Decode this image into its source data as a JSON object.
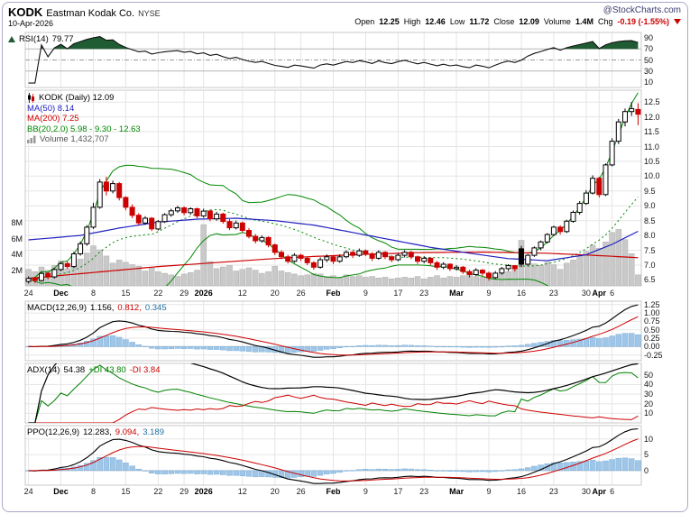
{
  "header": {
    "symbol": "KODK",
    "company": "Eastman Kodak Co.",
    "exchange": "NYSE",
    "brand": "@StockCharts.com",
    "date": "10-Apr-2026",
    "quote": [
      {
        "label": "Open",
        "value": "12.25"
      },
      {
        "label": "High",
        "value": "12.46"
      },
      {
        "label": "Low",
        "value": "11.72"
      },
      {
        "label": "Close",
        "value": "12.09"
      },
      {
        "label": "Volume",
        "value": "1.4M"
      },
      {
        "label": "Chg",
        "value": "-0.19 (-1.55%)",
        "negative": true
      }
    ]
  },
  "colors": {
    "up_candle": "#000000",
    "down_candle": "#cc0000",
    "candle_fill_up": "#ffffff",
    "ma50": "#2020c0",
    "ma200": "#cc0000",
    "bollinger": "#008800",
    "volume_bar": "#c9c9c9",
    "volume_edge": "#adadad",
    "histogram": "#9fc6e8",
    "histogram_edge": "#7aaed6",
    "rsi_line": "#111111",
    "rsi_fill": "#1f5c33",
    "macd_line": "#000000",
    "signal_line": "#cc0000",
    "hist_value": "#1f6f9f",
    "adx_line": "#000000",
    "pdi_line": "#008000",
    "ndi_line": "#cc0000",
    "grid": "#e5e5e5",
    "band_line": "#b5b5b5",
    "mid_line": "#999999",
    "zero_line": "#c8c8c8",
    "panel_border": "#c8c8c8",
    "frame_border": "#a9a9c9",
    "negative": "#cc0000"
  },
  "panels": {
    "rsi": {
      "parts": [
        {
          "t": "RSI(14)",
          "c": "#000000"
        },
        {
          "t": "79.77",
          "c": "#000000"
        }
      ],
      "ticks": [
        "90",
        "70",
        "50",
        "30",
        "10"
      ]
    },
    "price": {
      "legend": [
        {
          "text": "KODK (Daily) 12.09",
          "color": "#000000",
          "icon": "candlestick-icon"
        },
        {
          "text": "MA(50) 8.14",
          "color": "#2020c0"
        },
        {
          "text": "MA(200) 7.25",
          "color": "#cc0000"
        },
        {
          "text": "BB(20,2.0) 5.98 - 9.30 - 12.63",
          "color": "#008800"
        },
        {
          "text": "Volume 1,432,707",
          "color": "#555555",
          "icon": "volume-bars-icon"
        }
      ],
      "price_ticks": [
        "12.5",
        "12.0",
        "11.5",
        "11.0",
        "10.5",
        "10.0",
        "9.5",
        "9.0",
        "8.5",
        "8.0",
        "7.5",
        "7.0",
        "6.5"
      ],
      "volume_ticks": [
        {
          "label": "8M",
          "value": 8
        },
        {
          "label": "6M",
          "value": 6
        },
        {
          "label": "4M",
          "value": 4
        },
        {
          "label": "2M",
          "value": 2
        }
      ]
    },
    "macd": {
      "parts": [
        {
          "t": "MACD(12,26,9)",
          "c": "#000000"
        },
        {
          "t": "1.156,",
          "c": "#000000"
        },
        {
          "t": "0.812,",
          "c": "#cc0000"
        },
        {
          "t": "0.345",
          "c": "#1f6f9f"
        }
      ],
      "ticks": [
        "1.25",
        "1.00",
        "0.75",
        "0.50",
        "0.25",
        "0.00",
        "-0.25"
      ]
    },
    "adx": {
      "parts": [
        {
          "t": "ADX(14)",
          "c": "#000000"
        },
        {
          "t": "54.38",
          "c": "#000000"
        },
        {
          "t": "+DI 43.80",
          "c": "#008000"
        },
        {
          "t": "-DI 3.84",
          "c": "#cc0000"
        }
      ],
      "ticks": [
        "50",
        "40",
        "30",
        "20",
        "10"
      ]
    },
    "ppo": {
      "parts": [
        {
          "t": "PPO(12,26,9)",
          "c": "#000000"
        },
        {
          "t": "12.283,",
          "c": "#000000"
        },
        {
          "t": "9.094,",
          "c": "#cc0000"
        },
        {
          "t": "3.189",
          "c": "#1f6f9f"
        }
      ],
      "ticks": [
        "10",
        "5",
        "0"
      ]
    }
  },
  "chart_data": {
    "type": "candlestick",
    "title": "KODK (Daily)",
    "symbol": "KODK",
    "timeframe": "Daily",
    "price_range": [
      6.3,
      12.9
    ],
    "volume_m_per_gridline": 2,
    "x_ticks": [
      {
        "i": 0,
        "label": "24"
      },
      {
        "i": 5,
        "label": "Dec",
        "bold": true
      },
      {
        "i": 10,
        "label": "8"
      },
      {
        "i": 15,
        "label": "15"
      },
      {
        "i": 20,
        "label": "22"
      },
      {
        "i": 24,
        "label": "29"
      },
      {
        "i": 27,
        "label": "2026",
        "bold": true
      },
      {
        "i": 33,
        "label": "12"
      },
      {
        "i": 38,
        "label": "20"
      },
      {
        "i": 42,
        "label": "26"
      },
      {
        "i": 47,
        "label": "Feb",
        "bold": true
      },
      {
        "i": 52,
        "label": "9"
      },
      {
        "i": 57,
        "label": "17"
      },
      {
        "i": 61,
        "label": "23"
      },
      {
        "i": 66,
        "label": "Mar",
        "bold": true
      },
      {
        "i": 71,
        "label": "9"
      },
      {
        "i": 76,
        "label": "16"
      },
      {
        "i": 81,
        "label": "23"
      },
      {
        "i": 86,
        "label": "30"
      },
      {
        "i": 88,
        "label": "Apr",
        "bold": true
      },
      {
        "i": 90,
        "label": "6"
      }
    ],
    "candles": [
      [
        6.45,
        6.62,
        6.38,
        6.55,
        2.1
      ],
      [
        6.55,
        6.6,
        6.4,
        6.48,
        1.8
      ],
      [
        6.48,
        6.78,
        6.44,
        6.72,
        2.4
      ],
      [
        6.72,
        6.76,
        6.52,
        6.6,
        2.0
      ],
      [
        6.6,
        6.9,
        6.55,
        6.85,
        2.6
      ],
      [
        6.85,
        7.1,
        6.8,
        7.05,
        3.2
      ],
      [
        7.05,
        7.12,
        6.88,
        6.95,
        2.2
      ],
      [
        6.95,
        7.45,
        6.9,
        7.38,
        2.8
      ],
      [
        7.38,
        7.8,
        7.32,
        7.72,
        3.4
      ],
      [
        7.72,
        8.35,
        7.65,
        8.28,
        4.2
      ],
      [
        8.28,
        9.1,
        8.22,
        8.95,
        5.1
      ],
      [
        8.95,
        9.9,
        8.9,
        9.8,
        4.6
      ],
      [
        9.8,
        9.98,
        9.35,
        9.5,
        3.8
      ],
      [
        9.5,
        9.85,
        9.42,
        9.75,
        2.9
      ],
      [
        9.75,
        9.8,
        9.18,
        9.28,
        3.3
      ],
      [
        9.28,
        9.32,
        8.85,
        8.95,
        3.0
      ],
      [
        8.95,
        9.05,
        8.58,
        8.68,
        2.7
      ],
      [
        8.68,
        8.75,
        8.35,
        8.42,
        2.5
      ],
      [
        8.42,
        8.65,
        8.36,
        8.58,
        1.9
      ],
      [
        8.58,
        8.62,
        8.15,
        8.22,
        2.3
      ],
      [
        8.22,
        8.52,
        8.17,
        8.47,
        1.8
      ],
      [
        8.47,
        8.75,
        8.42,
        8.7,
        1.6
      ],
      [
        8.7,
        8.9,
        8.63,
        8.83,
        1.4
      ],
      [
        8.83,
        9.0,
        8.76,
        8.93,
        1.2
      ],
      [
        8.93,
        8.98,
        8.68,
        8.77,
        1.5
      ],
      [
        8.77,
        8.95,
        8.7,
        8.9,
        1.7
      ],
      [
        8.9,
        8.94,
        8.58,
        8.66,
        2.0
      ],
      [
        8.66,
        8.9,
        8.6,
        8.82,
        7.8
      ],
      [
        8.82,
        8.87,
        8.48,
        8.56,
        3.1
      ],
      [
        8.56,
        8.8,
        8.5,
        8.72,
        2.2
      ],
      [
        8.72,
        8.77,
        8.4,
        8.47,
        2.4
      ],
      [
        8.47,
        8.55,
        8.18,
        8.26,
        2.6
      ],
      [
        8.26,
        8.5,
        8.2,
        8.42,
        1.9
      ],
      [
        8.42,
        8.47,
        8.1,
        8.17,
        2.1
      ],
      [
        8.17,
        8.25,
        7.9,
        7.97,
        2.3
      ],
      [
        7.97,
        8.05,
        7.73,
        7.82,
        2.0
      ],
      [
        7.82,
        8.0,
        7.76,
        7.93,
        1.6
      ],
      [
        7.93,
        7.97,
        7.6,
        7.68,
        1.8
      ],
      [
        7.68,
        7.73,
        7.34,
        7.43,
        2.5
      ],
      [
        7.43,
        7.5,
        7.2,
        7.28,
        1.9
      ],
      [
        7.28,
        7.35,
        7.05,
        7.13,
        1.7
      ],
      [
        7.13,
        7.4,
        7.08,
        7.33,
        1.5
      ],
      [
        7.33,
        7.38,
        7.14,
        7.23,
        1.3
      ],
      [
        7.23,
        7.28,
        7.0,
        7.08,
        1.4
      ],
      [
        7.08,
        7.13,
        6.84,
        6.93,
        1.6
      ],
      [
        6.93,
        7.26,
        6.88,
        7.18,
        1.5
      ],
      [
        7.18,
        7.36,
        7.1,
        7.28,
        1.2
      ],
      [
        7.28,
        7.32,
        7.04,
        7.13,
        1.3
      ],
      [
        7.13,
        7.36,
        7.08,
        7.28,
        1.1
      ],
      [
        7.28,
        7.5,
        7.23,
        7.43,
        1.4
      ],
      [
        7.43,
        7.48,
        7.24,
        7.33,
        1.2
      ],
      [
        7.33,
        7.56,
        7.28,
        7.48,
        1.3
      ],
      [
        7.48,
        7.53,
        7.3,
        7.38,
        1.1
      ],
      [
        7.38,
        7.44,
        7.14,
        7.23,
        1.2
      ],
      [
        7.23,
        7.5,
        7.18,
        7.43,
        1.0
      ],
      [
        7.43,
        7.47,
        7.2,
        7.28,
        1.1
      ],
      [
        7.28,
        7.33,
        7.1,
        7.18,
        0.9
      ],
      [
        7.18,
        7.4,
        7.13,
        7.33,
        1.0
      ],
      [
        7.33,
        7.5,
        7.26,
        7.43,
        1.1
      ],
      [
        7.43,
        7.48,
        7.2,
        7.28,
        1.0
      ],
      [
        7.28,
        7.32,
        7.04,
        7.13,
        1.2
      ],
      [
        7.13,
        7.3,
        7.06,
        7.23,
        0.9
      ],
      [
        7.23,
        7.26,
        7.0,
        7.08,
        1.1
      ],
      [
        7.08,
        7.14,
        6.84,
        6.93,
        1.3
      ],
      [
        6.93,
        7.1,
        6.86,
        7.03,
        1.0
      ],
      [
        7.03,
        7.06,
        6.8,
        6.88,
        1.2
      ],
      [
        6.88,
        7.0,
        6.82,
        6.93,
        1.1
      ],
      [
        6.93,
        6.97,
        6.7,
        6.78,
        1.3
      ],
      [
        6.78,
        6.84,
        6.58,
        6.68,
        1.4
      ],
      [
        6.68,
        6.9,
        6.63,
        6.83,
        1.2
      ],
      [
        6.83,
        6.87,
        6.64,
        6.73,
        1.1
      ],
      [
        6.73,
        6.78,
        6.48,
        6.58,
        1.6
      ],
      [
        6.58,
        6.8,
        6.53,
        6.73,
        1.3
      ],
      [
        6.73,
        6.94,
        6.68,
        6.88,
        1.5
      ],
      [
        6.88,
        7.03,
        6.8,
        6.98,
        1.8
      ],
      [
        6.98,
        7.0,
        6.78,
        6.88,
        2.2
      ],
      [
        7.55,
        7.65,
        6.93,
        7.03,
        5.8
      ],
      [
        7.03,
        7.38,
        6.98,
        7.33,
        3.2
      ],
      [
        7.33,
        7.63,
        7.28,
        7.58,
        2.8
      ],
      [
        7.58,
        7.83,
        7.5,
        7.78,
        2.6
      ],
      [
        7.78,
        8.08,
        7.73,
        8.03,
        3.0
      ],
      [
        8.03,
        8.33,
        7.98,
        8.28,
        2.7
      ],
      [
        8.28,
        8.34,
        8.03,
        8.13,
        2.1
      ],
      [
        8.13,
        8.53,
        8.08,
        8.48,
        2.9
      ],
      [
        8.48,
        8.84,
        8.43,
        8.78,
        3.3
      ],
      [
        8.78,
        9.16,
        8.7,
        9.08,
        3.8
      ],
      [
        9.08,
        9.53,
        9.03,
        9.43,
        4.4
      ],
      [
        9.43,
        10.03,
        9.38,
        9.93,
        5.2
      ],
      [
        9.93,
        9.98,
        9.28,
        9.38,
        4.8
      ],
      [
        9.38,
        10.43,
        9.33,
        10.38,
        5.6
      ],
      [
        10.38,
        11.28,
        10.33,
        11.18,
        6.8
      ],
      [
        11.18,
        11.93,
        11.08,
        11.83,
        7.2
      ],
      [
        11.83,
        12.28,
        11.68,
        12.18,
        5.9
      ],
      [
        12.18,
        12.5,
        12.03,
        12.28,
        4.1
      ],
      [
        12.25,
        12.46,
        11.72,
        12.09,
        1.4
      ]
    ],
    "overlays": {
      "ma50": {
        "period": 50,
        "last": 8.14,
        "keypoints": [
          [
            0,
            7.85
          ],
          [
            8,
            8.0
          ],
          [
            14,
            8.25
          ],
          [
            20,
            8.45
          ],
          [
            26,
            8.55
          ],
          [
            32,
            8.58
          ],
          [
            38,
            8.5
          ],
          [
            44,
            8.35
          ],
          [
            50,
            8.1
          ],
          [
            56,
            7.85
          ],
          [
            62,
            7.6
          ],
          [
            68,
            7.4
          ],
          [
            74,
            7.22
          ],
          [
            80,
            7.15
          ],
          [
            86,
            7.35
          ],
          [
            90,
            7.7
          ],
          [
            94,
            8.14
          ]
        ]
      },
      "ma200": {
        "period": 200,
        "last": 7.25,
        "keypoints": [
          [
            0,
            6.55
          ],
          [
            10,
            6.75
          ],
          [
            20,
            6.95
          ],
          [
            30,
            7.1
          ],
          [
            40,
            7.25
          ],
          [
            50,
            7.35
          ],
          [
            60,
            7.42
          ],
          [
            70,
            7.44
          ],
          [
            80,
            7.4
          ],
          [
            88,
            7.32
          ],
          [
            94,
            7.25
          ]
        ]
      },
      "bollinger": {
        "period": 20,
        "stdev": 2,
        "last": [
          5.98,
          9.3,
          12.63
        ]
      }
    },
    "indicators": {
      "rsi": {
        "period": 14,
        "last": 79.77,
        "range": [
          0,
          100
        ],
        "overbought": 70,
        "oversold": 30,
        "mid": 50
      },
      "macd": {
        "fast": 12,
        "slow": 26,
        "signal": 9,
        "last": [
          1.156,
          0.812,
          0.345
        ],
        "range": [
          -0.42,
          1.35
        ]
      },
      "adx": {
        "period": 14,
        "last_adx": 54.38,
        "last_pdi": 43.8,
        "last_ndi": 3.84,
        "range": [
          0,
          62
        ]
      },
      "ppo": {
        "fast": 12,
        "slow": 26,
        "signal": 9,
        "last": [
          12.283,
          9.094,
          3.189
        ],
        "range": [
          -4.6,
          14.2
        ]
      }
    }
  }
}
